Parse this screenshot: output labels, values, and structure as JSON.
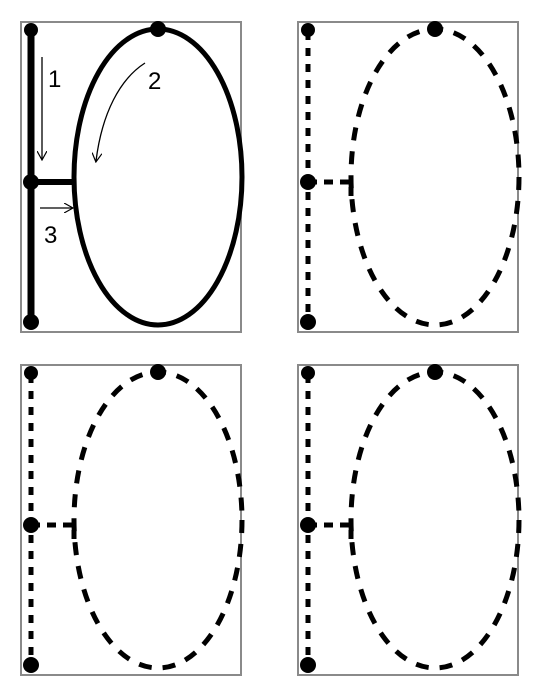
{
  "panels": [
    {
      "id": "p1",
      "style": "solid",
      "annotations": [
        "1",
        "2",
        "3"
      ]
    },
    {
      "id": "p2",
      "style": "dashed"
    },
    {
      "id": "p3",
      "style": "dashed"
    },
    {
      "id": "p4",
      "style": "dashed"
    }
  ],
  "colors": {
    "stroke": "#000000",
    "frame": "#8a8a8a",
    "background": "#ffffff"
  },
  "labels": {
    "step1": "1",
    "step2": "2",
    "step3": "3"
  }
}
